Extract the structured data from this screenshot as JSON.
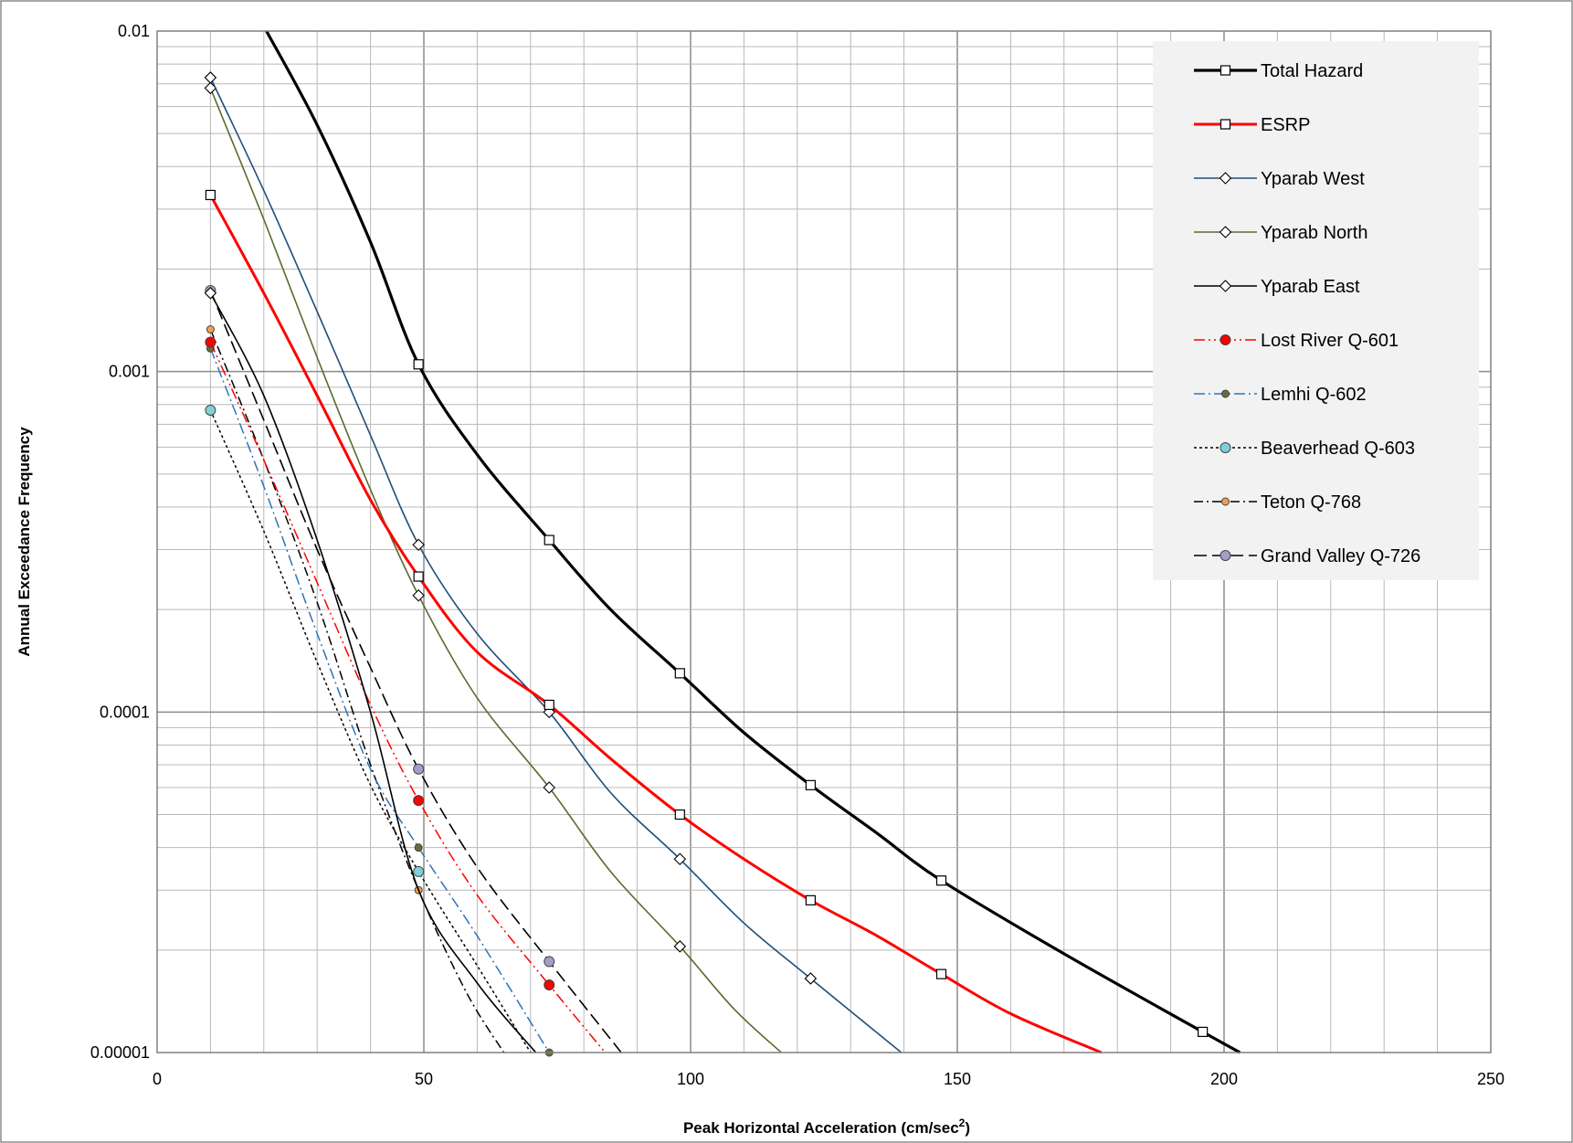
{
  "chart_data": {
    "type": "line",
    "title": "",
    "xlabel": "Peak Horizontal Acceleration  (cm/sec",
    "xlabel_sup": "2",
    "xlabel_end": ")",
    "ylabel": "Annual Exceedance  Frequency",
    "x_scale": "linear",
    "y_scale": "log",
    "xlim": [
      0,
      250
    ],
    "ylim": [
      1e-05,
      0.01
    ],
    "x_ticks": [
      0,
      50,
      100,
      150,
      200,
      250
    ],
    "x_tick_labels": [
      "0",
      "50",
      "100",
      "150",
      "200",
      "250"
    ],
    "y_ticks": [
      1e-05,
      0.0001,
      0.001,
      0.01
    ],
    "y_tick_labels": [
      "0.00001",
      "0.0001",
      "0.001",
      "0.01"
    ],
    "grid": true,
    "legend_position": "top-right",
    "series": [
      {
        "name": "Total Hazard",
        "color": "#000000",
        "marker": "square",
        "dash": "solid",
        "width": 3.2,
        "points": [
          [
            49,
            0.00105
          ],
          [
            73.5,
            0.00032
          ],
          [
            98,
            0.00013
          ],
          [
            122.5,
            6.1e-05
          ],
          [
            147,
            3.2e-05
          ],
          [
            196,
            1.15e-05
          ]
        ],
        "curve": [
          [
            20.5,
            0.01
          ],
          [
            30,
            0.0053
          ],
          [
            40,
            0.0024
          ],
          [
            49,
            0.00105
          ],
          [
            60,
            0.00057
          ],
          [
            73.5,
            0.00032
          ],
          [
            85,
            0.0002
          ],
          [
            98,
            0.00013
          ],
          [
            110,
            8.7e-05
          ],
          [
            122.5,
            6.1e-05
          ],
          [
            135,
            4.4e-05
          ],
          [
            147,
            3.2e-05
          ],
          [
            170,
            1.95e-05
          ],
          [
            196,
            1.15e-05
          ],
          [
            203,
            1e-05
          ]
        ]
      },
      {
        "name": "ESRP",
        "color": "#ff0000",
        "marker": "square",
        "dash": "solid",
        "width": 3,
        "points": [
          [
            10,
            0.0033
          ],
          [
            49,
            0.00025
          ],
          [
            73.5,
            0.000105
          ],
          [
            98,
            5e-05
          ],
          [
            122.5,
            2.8e-05
          ],
          [
            147,
            1.7e-05
          ]
        ],
        "curve": [
          [
            10,
            0.0033
          ],
          [
            20,
            0.0017
          ],
          [
            30,
            0.00085
          ],
          [
            40,
            0.00042
          ],
          [
            49,
            0.00025
          ],
          [
            60,
            0.00015
          ],
          [
            73.5,
            0.000105
          ],
          [
            85,
            7.3e-05
          ],
          [
            98,
            5e-05
          ],
          [
            110,
            3.7e-05
          ],
          [
            122.5,
            2.8e-05
          ],
          [
            135,
            2.2e-05
          ],
          [
            147,
            1.7e-05
          ],
          [
            160,
            1.3e-05
          ],
          [
            177,
            1e-05
          ]
        ]
      },
      {
        "name": "Yparab West",
        "color": "#1f4e79",
        "marker": "diamond",
        "dash": "solid",
        "width": 1.6,
        "points": [
          [
            10,
            0.0073
          ],
          [
            49,
            0.00031
          ],
          [
            73.5,
            0.0001
          ],
          [
            98,
            3.7e-05
          ],
          [
            122.5,
            1.65e-05
          ]
        ],
        "curve": [
          [
            10,
            0.0073
          ],
          [
            20,
            0.0034
          ],
          [
            30,
            0.0015
          ],
          [
            40,
            0.00065
          ],
          [
            49,
            0.00031
          ],
          [
            60,
            0.00017
          ],
          [
            73.5,
            0.0001
          ],
          [
            85,
            5.8e-05
          ],
          [
            98,
            3.7e-05
          ],
          [
            110,
            2.4e-05
          ],
          [
            122.5,
            1.65e-05
          ],
          [
            139.5,
            1e-05
          ]
        ]
      },
      {
        "name": "Yparab North",
        "color": "#5c6b2e",
        "marker": "diamond",
        "dash": "solid",
        "width": 1.6,
        "points": [
          [
            10,
            0.0068
          ],
          [
            49,
            0.00022
          ],
          [
            73.5,
            6e-05
          ],
          [
            98,
            2.05e-05
          ]
        ],
        "curve": [
          [
            10,
            0.0068
          ],
          [
            20,
            0.0028
          ],
          [
            30,
            0.0011
          ],
          [
            40,
            0.00045
          ],
          [
            49,
            0.00022
          ],
          [
            60,
            0.00011
          ],
          [
            73.5,
            6e-05
          ],
          [
            85,
            3.4e-05
          ],
          [
            98,
            2.05e-05
          ],
          [
            108,
            1.35e-05
          ],
          [
            117,
            1e-05
          ]
        ]
      },
      {
        "name": "Yparab East",
        "color": "#000000",
        "marker": "diamond",
        "dash": "solid",
        "width": 1.6,
        "points": [
          [
            10,
            0.0017
          ]
        ],
        "curve": [
          [
            10,
            0.0017
          ],
          [
            20,
            0.00085
          ],
          [
            30,
            0.00032
          ],
          [
            40,
            0.0001
          ],
          [
            49,
            3e-05
          ],
          [
            60,
            1.6e-05
          ],
          [
            71,
            1e-05
          ]
        ]
      },
      {
        "name": "Lost River Q-601",
        "color": "#ff0000",
        "marker": "circle",
        "marker_fill": "#ff0000",
        "marker_size": 11,
        "dash": "12,4,2,4,2,4",
        "width": 1.5,
        "points": [
          [
            10,
            0.00122
          ],
          [
            49,
            5.5e-05
          ],
          [
            73.5,
            1.58e-05
          ]
        ],
        "curve": [
          [
            10,
            0.00122
          ],
          [
            20,
            0.00055
          ],
          [
            30,
            0.00024
          ],
          [
            40,
            0.000105
          ],
          [
            49,
            5.5e-05
          ],
          [
            60,
            2.9e-05
          ],
          [
            73.5,
            1.58e-05
          ],
          [
            84,
            1e-05
          ]
        ]
      },
      {
        "name": "Lemhi Q-602",
        "color": "#2e75b6",
        "marker": "circle",
        "marker_fill": "#6b6b3a",
        "marker_size": 8,
        "dash": "12,4,2,4",
        "width": 1.5,
        "points": [
          [
            10,
            0.00117
          ],
          [
            49,
            4e-05
          ],
          [
            73.5,
            1e-05
          ]
        ],
        "curve": [
          [
            10,
            0.00117
          ],
          [
            20,
            0.00046
          ],
          [
            30,
            0.00017
          ],
          [
            40,
            6.8e-05
          ],
          [
            49,
            4e-05
          ],
          [
            60,
            2.2e-05
          ],
          [
            73.5,
            1e-05
          ]
        ]
      },
      {
        "name": "Beaverhead Q-603",
        "color": "#000000",
        "marker": "circle",
        "marker_fill": "#7fd0d8",
        "marker_size": 11,
        "dash": "3,3",
        "width": 1.5,
        "points": [
          [
            10,
            0.00077
          ],
          [
            49,
            3.4e-05
          ]
        ],
        "curve": [
          [
            10,
            0.00077
          ],
          [
            20,
            0.00034
          ],
          [
            30,
            0.00014
          ],
          [
            40,
            6.1e-05
          ],
          [
            49,
            3.4e-05
          ],
          [
            60,
            1.8e-05
          ],
          [
            70,
            1e-05
          ]
        ]
      },
      {
        "name": "Teton Q-768",
        "color": "#000000",
        "marker": "circle",
        "marker_fill": "#f0a050",
        "marker_size": 8,
        "dash": "10,4,2,4",
        "width": 1.5,
        "points": [
          [
            10,
            0.00133
          ],
          [
            49,
            3e-05
          ]
        ],
        "curve": [
          [
            10,
            0.00133
          ],
          [
            20,
            0.00055
          ],
          [
            30,
            0.00021
          ],
          [
            40,
            7e-05
          ],
          [
            49,
            3e-05
          ],
          [
            58,
            1.5e-05
          ],
          [
            65,
            1e-05
          ]
        ]
      },
      {
        "name": "Grand Valley Q-726",
        "color": "#000000",
        "marker": "circle",
        "marker_fill": "#a99bc9",
        "marker_size": 11,
        "dash": "14,6",
        "width": 1.6,
        "points": [
          [
            10,
            0.00173
          ],
          [
            49,
            6.8e-05
          ],
          [
            73.5,
            1.85e-05
          ]
        ],
        "curve": [
          [
            10,
            0.00173
          ],
          [
            20,
            0.00072
          ],
          [
            30,
            0.0003
          ],
          [
            40,
            0.000135
          ],
          [
            49,
            6.8e-05
          ],
          [
            60,
            3.5e-05
          ],
          [
            73.5,
            1.85e-05
          ],
          [
            87,
            1e-05
          ]
        ]
      }
    ]
  }
}
